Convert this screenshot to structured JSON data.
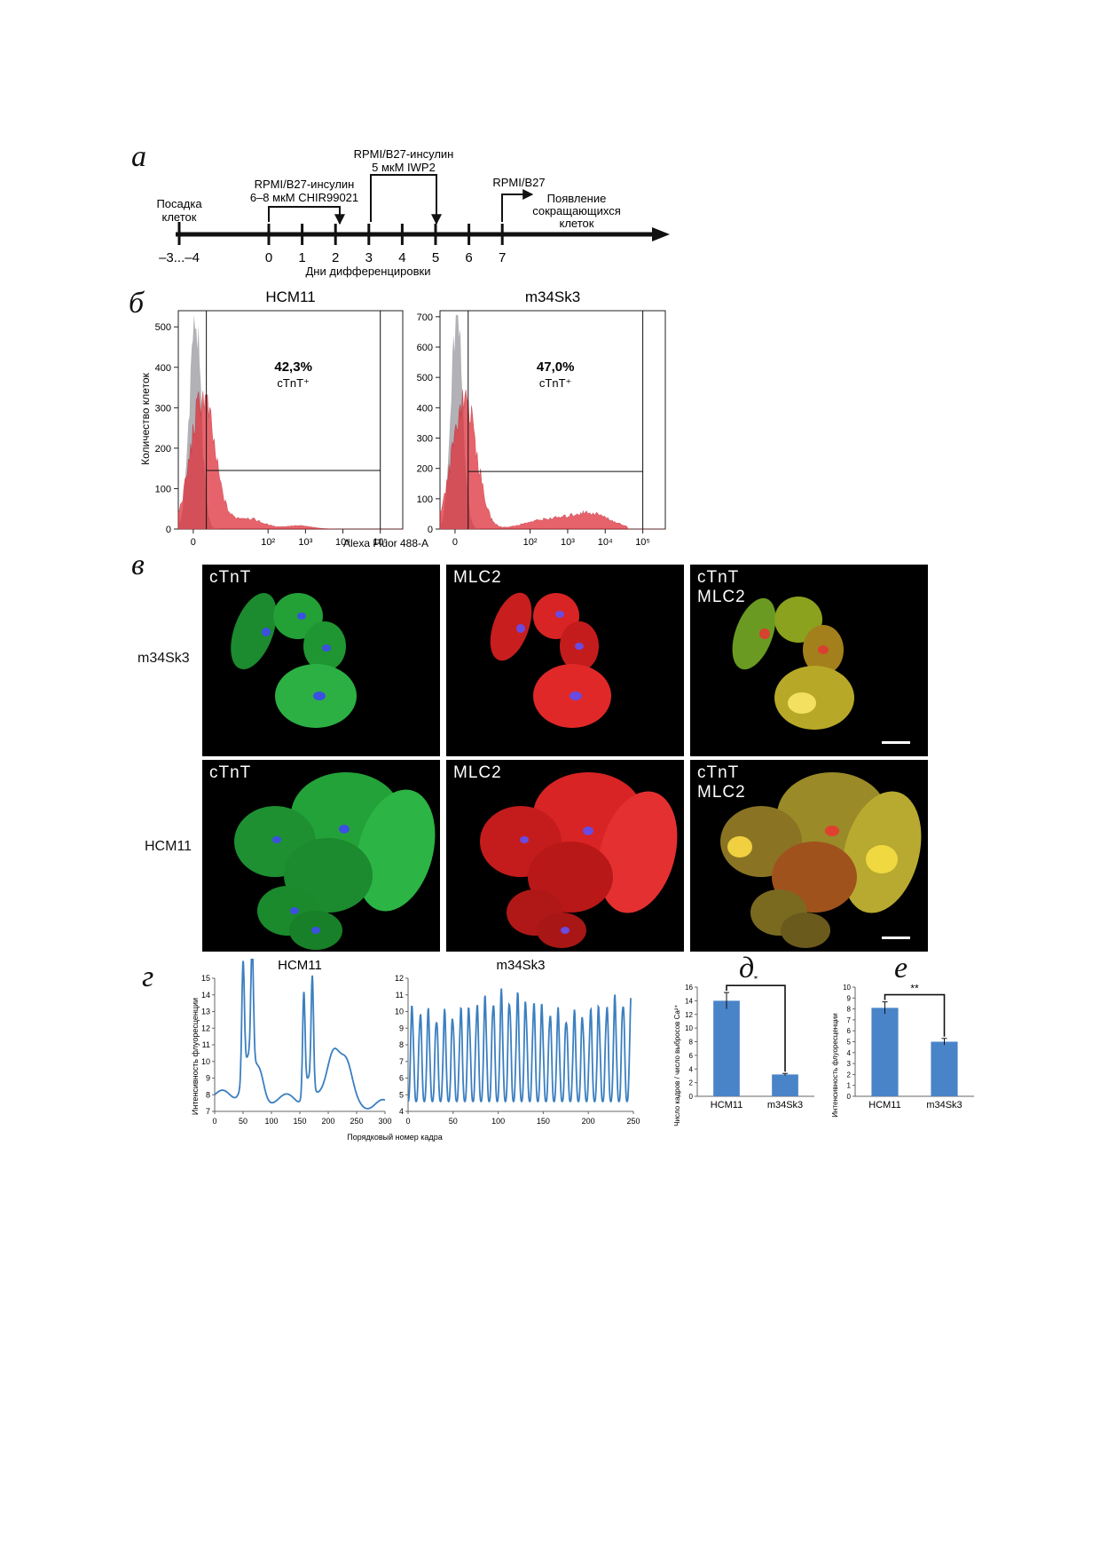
{
  "panels": {
    "a": "а",
    "b": "б",
    "v": "в",
    "g": "г",
    "d": "д",
    "e": "е"
  },
  "timeline": {
    "seeding": [
      "Посадка",
      "клеток"
    ],
    "seeding_days": "–3...–4",
    "step1": [
      "RPMI/B27-инсулин",
      "6–8 мкМ CHIR99021"
    ],
    "step2": [
      "RPMI/B27-инсулин",
      "5 мкМ IWP2"
    ],
    "step3": "RPMI/B27",
    "contracting": [
      "Появление",
      "сокращающихся",
      "клеток"
    ],
    "days": [
      {
        "day": 0,
        "label": "0"
      },
      {
        "day": 1,
        "label": "1"
      },
      {
        "day": 2,
        "label": "2"
      },
      {
        "day": 3,
        "label": "3"
      },
      {
        "day": 4,
        "label": "4"
      },
      {
        "day": 5,
        "label": "5"
      },
      {
        "day": 6,
        "label": "6"
      },
      {
        "day": 7,
        "label": "7"
      }
    ],
    "axis_label": "Дни дифференцировки"
  },
  "flow": {
    "ylabel": "Количество клеток",
    "xlabel": "Alexa Fluor 488-A",
    "xticks": [
      {
        "v": 0,
        "label": "0"
      },
      {
        "v": 2,
        "label": "10²"
      },
      {
        "v": 3,
        "label": "10³"
      },
      {
        "v": 4,
        "label": "10⁴"
      },
      {
        "v": 5,
        "label": "10⁵"
      }
    ],
    "gate_x": 0.35,
    "colors": {
      "control": "#a8a8ae",
      "sample": "#e0303a"
    },
    "hcm11": {
      "title": "HCM11",
      "pct": "42,3%",
      "marker": "cTnT⁺",
      "ylim": [
        0,
        540
      ],
      "yticks": [
        0,
        100,
        200,
        300,
        400,
        500
      ],
      "gate_y": 145
    },
    "m34sk3": {
      "title": "m34Sk3",
      "pct": "47,0%",
      "marker": "cTnT⁺",
      "ylim": [
        0,
        720
      ],
      "yticks": [
        0,
        100,
        200,
        300,
        400,
        500,
        600,
        700
      ],
      "gate_y": 190
    }
  },
  "micro": {
    "rows": [
      {
        "label": "m34Sk3"
      },
      {
        "label": "HCM11"
      }
    ],
    "channels": [
      {
        "lines": [
          "cTnT"
        ]
      },
      {
        "lines": [
          "MLC2"
        ]
      },
      {
        "lines": [
          "cTnT",
          "MLC2"
        ]
      }
    ]
  },
  "calcium": {
    "ylabel": "Интенсивность флуоресценции",
    "xlabel": "Порядковый номер кадра",
    "color": "#3b7fc0",
    "hcm11": {
      "title": "HCM11",
      "xlim": [
        0,
        300
      ],
      "xticks": [
        0,
        50,
        100,
        150,
        200,
        250,
        300
      ],
      "ylim": [
        7,
        15
      ],
      "yticks": [
        7,
        8,
        9,
        10,
        11,
        12,
        13,
        14,
        15
      ]
    },
    "m34sk3": {
      "title": "m34Sk3",
      "xlim": [
        0,
        250
      ],
      "xticks": [
        0,
        50,
        100,
        150,
        200,
        250
      ],
      "ylim": [
        4,
        12
      ],
      "yticks": [
        4,
        5,
        6,
        7,
        8,
        9,
        10,
        11,
        12
      ]
    }
  },
  "chart_data": [
    {
      "type": "bar",
      "categories": [
        "HCM11",
        "m34Sk3"
      ],
      "values": [
        14,
        3.2
      ],
      "errors": [
        1.2,
        0.15
      ],
      "ylim": [
        0,
        16
      ],
      "yticks": [
        0,
        2,
        4,
        6,
        8,
        10,
        12,
        14,
        16
      ],
      "ylabel": "Число кадров / число выбросов Ca²⁺",
      "significance": "*",
      "color": "#4a84c8"
    },
    {
      "type": "bar",
      "categories": [
        "HCM11",
        "m34Sk3"
      ],
      "values": [
        8.1,
        5.0
      ],
      "errors": [
        0.55,
        0.3
      ],
      "ylim": [
        0,
        10
      ],
      "yticks": [
        0,
        1,
        2,
        3,
        4,
        5,
        6,
        7,
        8,
        9,
        10
      ],
      "ylabel": "Интенсивность флуоресценции",
      "significance": "**",
      "color": "#4a84c8"
    }
  ]
}
